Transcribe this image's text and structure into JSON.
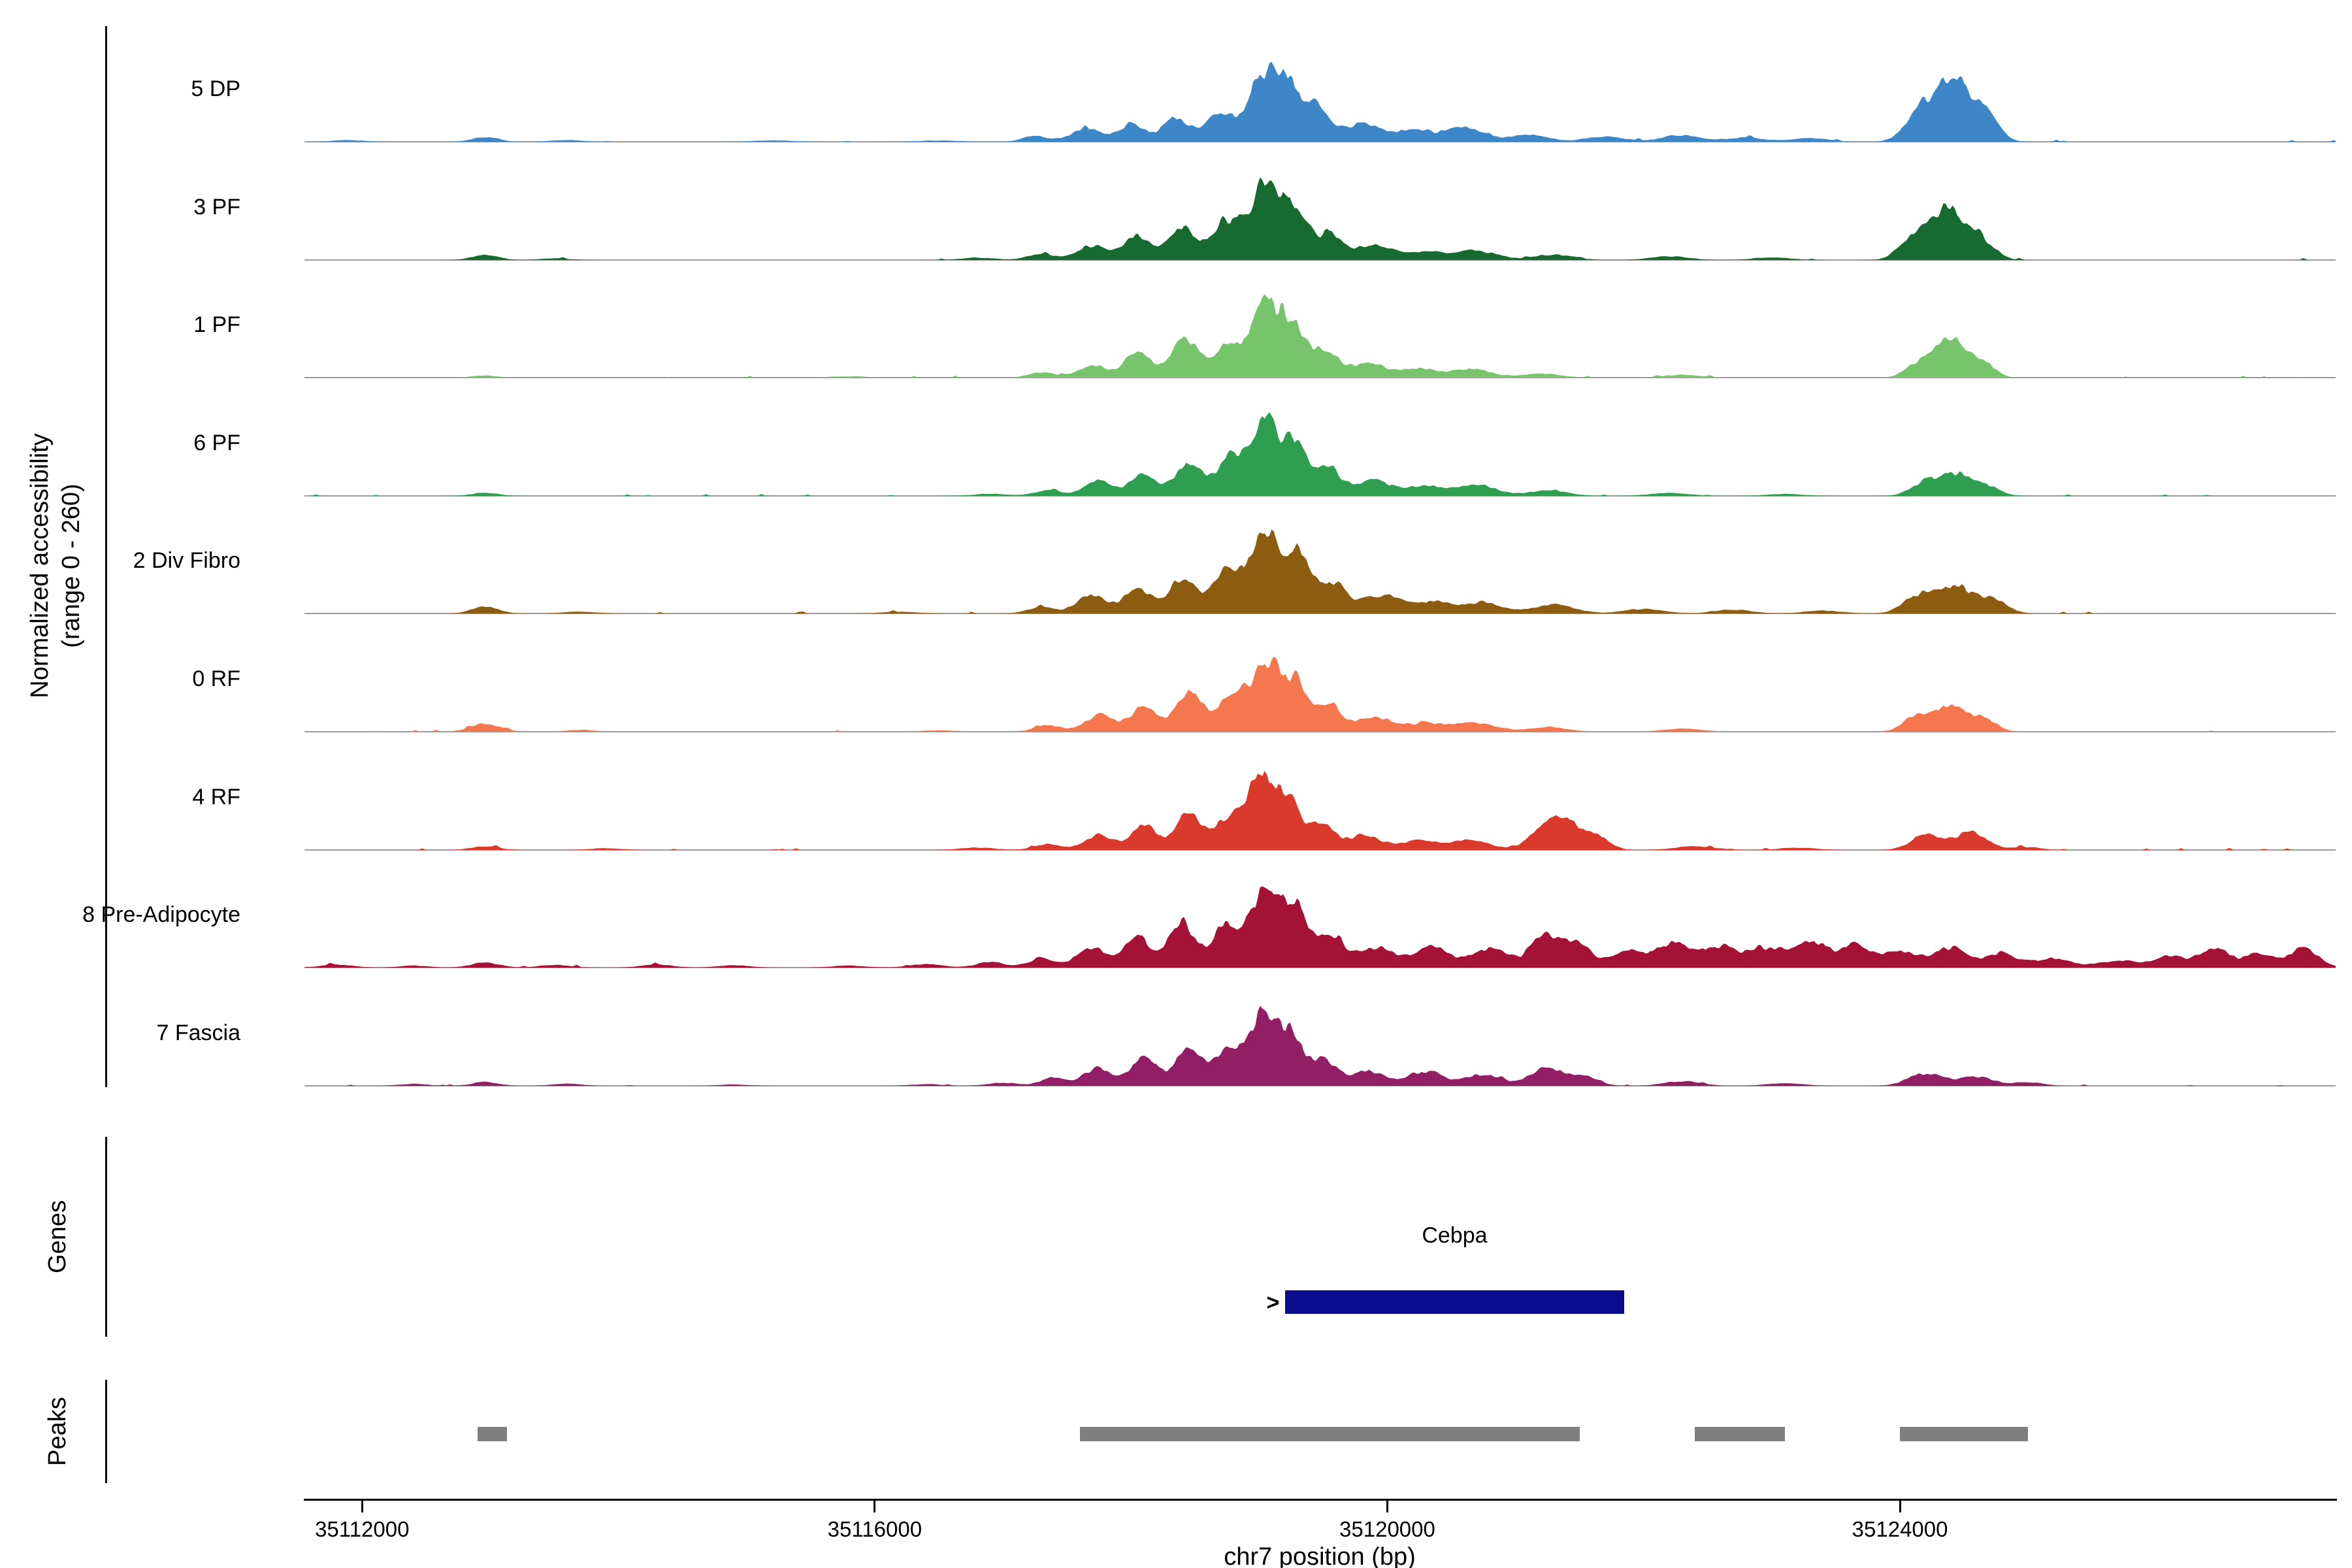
{
  "chart_data": {
    "type": "area",
    "title": "",
    "x_axis": {
      "label": "chr7 position (bp)",
      "ticks": [
        35112000,
        35116000,
        35120000,
        35124000
      ],
      "range": [
        35111550,
        35127400
      ]
    },
    "y_axis": {
      "label_line1": "Normalized accessibility",
      "label_line2": "(range 0 - 260)",
      "range": [
        0,
        260
      ]
    },
    "tracks": [
      {
        "label": "5 DP",
        "color": "#3d87c9",
        "seed": 11,
        "peaks": [
          [
            35111900,
            120,
            5
          ],
          [
            35112960,
            100,
            14
          ],
          [
            35113600,
            120,
            5
          ],
          [
            35115200,
            150,
            4
          ],
          [
            35116500,
            150,
            4
          ],
          [
            35117250,
            90,
            16
          ],
          [
            35117650,
            110,
            38
          ],
          [
            35118000,
            90,
            52
          ],
          [
            35118350,
            100,
            62
          ],
          [
            35118700,
            110,
            72
          ],
          [
            35118900,
            700,
            12
          ],
          [
            35119060,
            120,
            210
          ],
          [
            35119250,
            80,
            118
          ],
          [
            35119450,
            90,
            92
          ],
          [
            35119800,
            130,
            52
          ],
          [
            35120200,
            140,
            34
          ],
          [
            35120600,
            150,
            44
          ],
          [
            35121100,
            150,
            20
          ],
          [
            35121700,
            150,
            16
          ],
          [
            35122300,
            150,
            20
          ],
          [
            35122800,
            140,
            13
          ],
          [
            35123300,
            140,
            11
          ],
          [
            35124150,
            110,
            85
          ],
          [
            35124430,
            140,
            190
          ],
          [
            35124700,
            90,
            55
          ]
        ]
      },
      {
        "label": "3 PF",
        "color": "#176b30",
        "seed": 22,
        "peaks": [
          [
            35112960,
            100,
            16
          ],
          [
            35113500,
            110,
            5
          ],
          [
            35116800,
            130,
            7
          ],
          [
            35117300,
            100,
            18
          ],
          [
            35117700,
            110,
            42
          ],
          [
            35118050,
            95,
            66
          ],
          [
            35118400,
            100,
            86
          ],
          [
            35118750,
            110,
            106
          ],
          [
            35118900,
            700,
            12
          ],
          [
            35119060,
            115,
            225
          ],
          [
            35119300,
            85,
            126
          ],
          [
            35119550,
            95,
            76
          ],
          [
            35119900,
            130,
            42
          ],
          [
            35120300,
            140,
            26
          ],
          [
            35120700,
            150,
            28
          ],
          [
            35121300,
            150,
            16
          ],
          [
            35122200,
            150,
            11
          ],
          [
            35123000,
            140,
            8
          ],
          [
            35124100,
            110,
            58
          ],
          [
            35124380,
            140,
            145
          ],
          [
            35124650,
            100,
            50
          ]
        ]
      },
      {
        "label": "1 PF",
        "color": "#78c46d",
        "seed": 33,
        "peaks": [
          [
            35112960,
            100,
            6
          ],
          [
            35115800,
            140,
            4
          ],
          [
            35117300,
            100,
            14
          ],
          [
            35117700,
            110,
            33
          ],
          [
            35118050,
            95,
            76
          ],
          [
            35118420,
            100,
            110
          ],
          [
            35118750,
            100,
            86
          ],
          [
            35118900,
            700,
            11
          ],
          [
            35119060,
            115,
            218
          ],
          [
            35119280,
            85,
            126
          ],
          [
            35119520,
            95,
            80
          ],
          [
            35119850,
            130,
            38
          ],
          [
            35120250,
            140,
            24
          ],
          [
            35120650,
            150,
            26
          ],
          [
            35121200,
            150,
            12
          ],
          [
            35122300,
            150,
            8
          ],
          [
            35124150,
            100,
            42
          ],
          [
            35124400,
            120,
            120
          ],
          [
            35124650,
            90,
            38
          ]
        ]
      },
      {
        "label": "6 PF",
        "color": "#2f9e50",
        "seed": 44,
        "peaks": [
          [
            35112960,
            100,
            9
          ],
          [
            35116900,
            130,
            6
          ],
          [
            35117350,
            100,
            16
          ],
          [
            35117750,
            110,
            42
          ],
          [
            35118100,
            95,
            66
          ],
          [
            35118450,
            100,
            90
          ],
          [
            35118780,
            105,
            100
          ],
          [
            35118900,
            700,
            11
          ],
          [
            35119060,
            115,
            208
          ],
          [
            35119300,
            85,
            120
          ],
          [
            35119550,
            95,
            72
          ],
          [
            35119900,
            130,
            42
          ],
          [
            35120300,
            140,
            28
          ],
          [
            35120700,
            150,
            32
          ],
          [
            35121250,
            150,
            16
          ],
          [
            35122200,
            150,
            9
          ],
          [
            35123100,
            140,
            6
          ],
          [
            35124200,
            110,
            38
          ],
          [
            35124450,
            130,
            66
          ],
          [
            35124700,
            90,
            22
          ]
        ]
      },
      {
        "label": "2 Div Fibro",
        "color": "#8c5c10",
        "seed": 55,
        "peaks": [
          [
            35112960,
            100,
            20
          ],
          [
            35113700,
            120,
            6
          ],
          [
            35116200,
            140,
            5
          ],
          [
            35117300,
            100,
            20
          ],
          [
            35117700,
            110,
            52
          ],
          [
            35118050,
            95,
            72
          ],
          [
            35118400,
            100,
            96
          ],
          [
            35118750,
            110,
            116
          ],
          [
            35118900,
            700,
            12
          ],
          [
            35119060,
            120,
            222
          ],
          [
            35119320,
            90,
            145
          ],
          [
            35119580,
            100,
            86
          ],
          [
            35119950,
            140,
            52
          ],
          [
            35120350,
            140,
            33
          ],
          [
            35120750,
            150,
            33
          ],
          [
            35121300,
            160,
            26
          ],
          [
            35122000,
            150,
            14
          ],
          [
            35122700,
            140,
            11
          ],
          [
            35123400,
            140,
            9
          ],
          [
            35124150,
            120,
            52
          ],
          [
            35124450,
            150,
            76
          ],
          [
            35124750,
            100,
            32
          ]
        ]
      },
      {
        "label": "0 RF",
        "color": "#f5774e",
        "seed": 66,
        "peaks": [
          [
            35112960,
            110,
            26
          ],
          [
            35113700,
            120,
            5
          ],
          [
            35116500,
            140,
            4
          ],
          [
            35117350,
            100,
            18
          ],
          [
            35117750,
            110,
            47
          ],
          [
            35118100,
            95,
            76
          ],
          [
            35118450,
            100,
            105
          ],
          [
            35118780,
            105,
            90
          ],
          [
            35118900,
            700,
            11
          ],
          [
            35119060,
            115,
            202
          ],
          [
            35119290,
            85,
            120
          ],
          [
            35119540,
            95,
            76
          ],
          [
            35119900,
            130,
            38
          ],
          [
            35120300,
            140,
            26
          ],
          [
            35120700,
            150,
            26
          ],
          [
            35121250,
            150,
            14
          ],
          [
            35122300,
            150,
            9
          ],
          [
            35124150,
            110,
            47
          ],
          [
            35124420,
            130,
            72
          ],
          [
            35124680,
            90,
            28
          ]
        ]
      },
      {
        "label": "4 RF",
        "color": "#d93a2b",
        "seed": 77,
        "peaks": [
          [
            35112960,
            100,
            12
          ],
          [
            35113900,
            120,
            5
          ],
          [
            35116800,
            130,
            7
          ],
          [
            35117350,
            100,
            16
          ],
          [
            35117750,
            110,
            42
          ],
          [
            35118100,
            95,
            70
          ],
          [
            35118450,
            100,
            105
          ],
          [
            35118760,
            100,
            86
          ],
          [
            35118900,
            700,
            11
          ],
          [
            35119020,
            110,
            216
          ],
          [
            35119240,
            80,
            124
          ],
          [
            35119480,
            90,
            76
          ],
          [
            35119820,
            130,
            38
          ],
          [
            35120250,
            140,
            26
          ],
          [
            35120650,
            150,
            28
          ],
          [
            35121200,
            110,
            56
          ],
          [
            35121400,
            110,
            86
          ],
          [
            35121650,
            90,
            38
          ],
          [
            35122400,
            150,
            11
          ],
          [
            35123200,
            140,
            7
          ],
          [
            35124200,
            110,
            47
          ],
          [
            35124550,
            130,
            52
          ],
          [
            35125000,
            100,
            9
          ]
        ]
      },
      {
        "label": "8 Pre-Adipocyte",
        "color": "#a41335",
        "seed": 88,
        "peaks": [
          [
            35111800,
            120,
            9
          ],
          [
            35112400,
            110,
            6
          ],
          [
            35112960,
            110,
            15
          ],
          [
            35113500,
            110,
            8
          ],
          [
            35114300,
            120,
            9
          ],
          [
            35114900,
            120,
            7
          ],
          [
            35115800,
            130,
            6
          ],
          [
            35116400,
            120,
            11
          ],
          [
            35116900,
            110,
            16
          ],
          [
            35117300,
            100,
            28
          ],
          [
            35117700,
            110,
            56
          ],
          [
            35118050,
            95,
            90
          ],
          [
            35118400,
            100,
            124
          ],
          [
            35118750,
            110,
            114
          ],
          [
            35118900,
            700,
            13
          ],
          [
            35119060,
            115,
            226
          ],
          [
            35119300,
            85,
            142
          ],
          [
            35119560,
            95,
            90
          ],
          [
            35119920,
            140,
            56
          ],
          [
            35120350,
            130,
            56
          ],
          [
            35120800,
            140,
            52
          ],
          [
            35121250,
            120,
            95
          ],
          [
            35121500,
            100,
            56
          ],
          [
            35121900,
            130,
            42
          ],
          [
            35122250,
            120,
            66
          ],
          [
            35122600,
            120,
            56
          ],
          [
            35122950,
            120,
            52
          ],
          [
            35123300,
            120,
            71
          ],
          [
            35123650,
            120,
            62
          ],
          [
            35124000,
            120,
            42
          ],
          [
            35124400,
            130,
            52
          ],
          [
            35124800,
            120,
            38
          ],
          [
            35125200,
            130,
            23
          ],
          [
            35125700,
            130,
            19
          ],
          [
            35126100,
            120,
            33
          ],
          [
            35126450,
            110,
            56
          ],
          [
            35126800,
            110,
            42
          ],
          [
            35127150,
            110,
            56
          ],
          [
            35123000,
            1700,
            10
          ]
        ]
      },
      {
        "label": "7 Fascia",
        "color": "#921f66",
        "seed": 99,
        "peaks": [
          [
            35112400,
            110,
            6
          ],
          [
            35112960,
            100,
            12
          ],
          [
            35113600,
            110,
            7
          ],
          [
            35114900,
            120,
            4
          ],
          [
            35116400,
            120,
            5
          ],
          [
            35117000,
            110,
            9
          ],
          [
            35117400,
            100,
            23
          ],
          [
            35117750,
            110,
            52
          ],
          [
            35118100,
            95,
            80
          ],
          [
            35118450,
            100,
            105
          ],
          [
            35118760,
            100,
            90
          ],
          [
            35118900,
            700,
            11
          ],
          [
            35119040,
            110,
            210
          ],
          [
            35119260,
            80,
            124
          ],
          [
            35119500,
            90,
            76
          ],
          [
            35119850,
            130,
            42
          ],
          [
            35120300,
            130,
            42
          ],
          [
            35120750,
            140,
            33
          ],
          [
            35121250,
            130,
            52
          ],
          [
            35121550,
            100,
            28
          ],
          [
            35122300,
            140,
            14
          ],
          [
            35123100,
            140,
            8
          ],
          [
            35124200,
            130,
            38
          ],
          [
            35124600,
            130,
            28
          ],
          [
            35125000,
            110,
            11
          ]
        ]
      }
    ],
    "genes": {
      "section_label": "Genes",
      "items": [
        {
          "name": "Cebpa",
          "start": 35119200,
          "end": 35121850,
          "strand": "+",
          "color": "#0b0b8d"
        }
      ]
    },
    "peaks_track": {
      "section_label": "Peaks",
      "color": "#7f7f7f",
      "intervals": [
        [
          35112900,
          35113130
        ],
        [
          35117600,
          35121500
        ],
        [
          35122400,
          35123100
        ],
        [
          35124000,
          35125000
        ]
      ]
    }
  }
}
